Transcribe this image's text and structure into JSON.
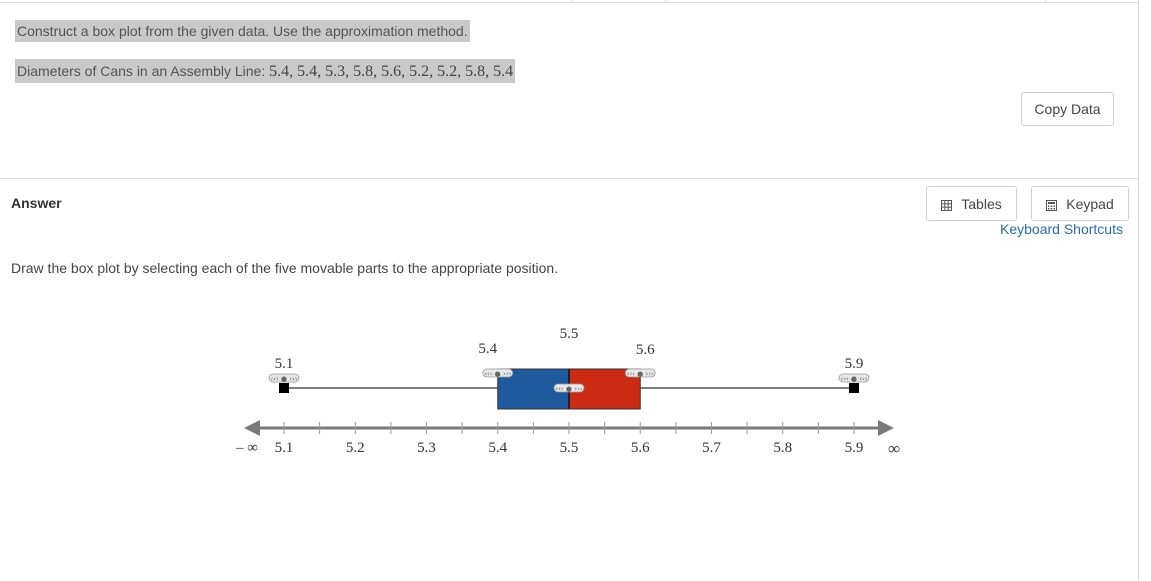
{
  "question": {
    "prompt": "Construct a box plot from the given data. Use the approximation method.",
    "data_label": "Diameters of Cans in an Assembly Line: ",
    "data_values": "5.4, 5.4, 5.3, 5.8, 5.6, 5.2, 5.2, 5.8, 5.4",
    "copy_button": "Copy Data"
  },
  "answer": {
    "label": "Answer",
    "tables_button": "Tables",
    "keypad_button": "Keypad",
    "shortcuts_link": "Keyboard Shortcuts",
    "instructions": "Draw the box plot by selecting each of the five movable parts to the appropriate position."
  },
  "box_plot": {
    "axis": {
      "neg_inf_label": "– ∞",
      "pos_inf_label": "∞",
      "min": 5.1,
      "max": 5.9,
      "minor_step": 0.05,
      "major_step": 0.1,
      "tick_labels": [
        "5.1",
        "5.2",
        "5.3",
        "5.4",
        "5.5",
        "5.6",
        "5.7",
        "5.8",
        "5.9"
      ]
    },
    "five_number_summary": {
      "min": 5.1,
      "q1": 5.4,
      "median": 5.5,
      "q3": 5.6,
      "max": 5.9
    },
    "handle_labels": {
      "min": "5.1",
      "q1": "5.4",
      "median": "5.5",
      "q3": "5.6",
      "max": "5.9"
    },
    "colors": {
      "lower_box": "#1f5a9e",
      "upper_box": "#cc2a12",
      "axis": "#7a7a7a",
      "whisker": "#555555"
    }
  }
}
